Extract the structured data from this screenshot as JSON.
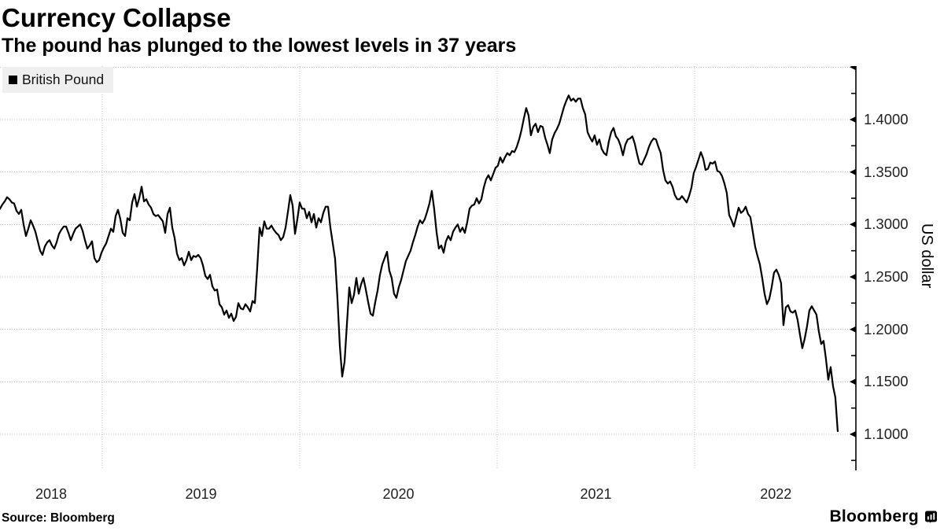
{
  "footer": {
    "source": "Source: Bloomberg",
    "brand": "Bloomberg"
  },
  "chart_data": {
    "type": "line",
    "title": "Currency Collapse",
    "subtitle": "The pound has plunged to the lowest levels in 37 years",
    "ylabel": "US dollar",
    "xlabel": "",
    "grid": "dotted",
    "legend_position": "top-left",
    "x_range": [
      2018.482,
      2022.825
    ],
    "y_range": [
      1.0655,
      1.451
    ],
    "x_gridlines": [
      2019,
      2020,
      2021,
      2022
    ],
    "y_gridlines": [
      1.1,
      1.15,
      1.2,
      1.25,
      1.3,
      1.35,
      1.4,
      1.45
    ],
    "y_minor_ticks": [
      1.075,
      1.125,
      1.175,
      1.225,
      1.275,
      1.325,
      1.375,
      1.425
    ],
    "y_ticks": [
      {
        "value": 1.4,
        "label": "1.4000"
      },
      {
        "value": 1.35,
        "label": "1.3500"
      },
      {
        "value": 1.3,
        "label": "1.3000"
      },
      {
        "value": 1.25,
        "label": "1.2500"
      },
      {
        "value": 1.2,
        "label": "1.2000"
      },
      {
        "value": 1.15,
        "label": "1.1500"
      },
      {
        "value": 1.1,
        "label": "1.1000"
      }
    ],
    "x_ticks": [
      {
        "value": 2018.741,
        "label": "2018"
      },
      {
        "value": 2019.5,
        "label": "2019"
      },
      {
        "value": 2020.5,
        "label": "2020"
      },
      {
        "value": 2021.5,
        "label": "2021"
      },
      {
        "value": 2022.412,
        "label": "2022"
      }
    ],
    "series": [
      {
        "name": "British Pound",
        "color": "#000000",
        "t_start": 2018.482,
        "t_step": 0.011952,
        "values": [
          1.315,
          1.319,
          1.322,
          1.326,
          1.324,
          1.321,
          1.32,
          1.313,
          1.31,
          1.314,
          1.3,
          1.289,
          1.296,
          1.304,
          1.299,
          1.293,
          1.284,
          1.275,
          1.271,
          1.279,
          1.283,
          1.285,
          1.28,
          1.277,
          1.283,
          1.291,
          1.295,
          1.298,
          1.298,
          1.292,
          1.285,
          1.291,
          1.296,
          1.298,
          1.3,
          1.294,
          1.285,
          1.277,
          1.28,
          1.284,
          1.268,
          1.264,
          1.266,
          1.273,
          1.278,
          1.282,
          1.289,
          1.296,
          1.293,
          1.308,
          1.314,
          1.305,
          1.292,
          1.289,
          1.306,
          1.304,
          1.321,
          1.329,
          1.317,
          1.325,
          1.336,
          1.322,
          1.324,
          1.319,
          1.316,
          1.31,
          1.308,
          1.309,
          1.306,
          1.303,
          1.292,
          1.31,
          1.316,
          1.297,
          1.287,
          1.272,
          1.266,
          1.268,
          1.261,
          1.266,
          1.274,
          1.266,
          1.27,
          1.269,
          1.271,
          1.268,
          1.261,
          1.251,
          1.248,
          1.252,
          1.241,
          1.237,
          1.238,
          1.224,
          1.221,
          1.214,
          1.218,
          1.211,
          1.215,
          1.208,
          1.212,
          1.225,
          1.22,
          1.219,
          1.224,
          1.221,
          1.217,
          1.227,
          1.225,
          1.259,
          1.297,
          1.289,
          1.303,
          1.296,
          1.296,
          1.299,
          1.295,
          1.292,
          1.29,
          1.285,
          1.288,
          1.297,
          1.312,
          1.328,
          1.318,
          1.291,
          1.305,
          1.321,
          1.315,
          1.315,
          1.306,
          1.312,
          1.302,
          1.31,
          1.297,
          1.306,
          1.302,
          1.311,
          1.317,
          1.317,
          1.297,
          1.282,
          1.267,
          1.229,
          1.184,
          1.155,
          1.169,
          1.205,
          1.24,
          1.225,
          1.233,
          1.249,
          1.234,
          1.243,
          1.249,
          1.238,
          1.226,
          1.215,
          1.213,
          1.226,
          1.237,
          1.252,
          1.262,
          1.268,
          1.274,
          1.256,
          1.249,
          1.234,
          1.23,
          1.24,
          1.247,
          1.256,
          1.265,
          1.27,
          1.275,
          1.283,
          1.29,
          1.298,
          1.304,
          1.301,
          1.305,
          1.312,
          1.32,
          1.332,
          1.315,
          1.293,
          1.277,
          1.28,
          1.273,
          1.284,
          1.289,
          1.285,
          1.293,
          1.297,
          1.3,
          1.293,
          1.297,
          1.292,
          1.302,
          1.315,
          1.318,
          1.319,
          1.325,
          1.32,
          1.324,
          1.335,
          1.343,
          1.347,
          1.342,
          1.348,
          1.354,
          1.356,
          1.364,
          1.359,
          1.364,
          1.368,
          1.366,
          1.37,
          1.369,
          1.374,
          1.381,
          1.39,
          1.401,
          1.411,
          1.404,
          1.385,
          1.393,
          1.396,
          1.388,
          1.394,
          1.393,
          1.383,
          1.376,
          1.368,
          1.381,
          1.387,
          1.391,
          1.396,
          1.404,
          1.412,
          1.418,
          1.423,
          1.418,
          1.42,
          1.417,
          1.42,
          1.42,
          1.411,
          1.405,
          1.388,
          1.383,
          1.379,
          1.385,
          1.376,
          1.381,
          1.372,
          1.368,
          1.366,
          1.379,
          1.388,
          1.392,
          1.384,
          1.381,
          1.375,
          1.366,
          1.376,
          1.381,
          1.382,
          1.384,
          1.377,
          1.367,
          1.358,
          1.357,
          1.362,
          1.367,
          1.374,
          1.379,
          1.382,
          1.381,
          1.374,
          1.368,
          1.352,
          1.342,
          1.339,
          1.341,
          1.336,
          1.328,
          1.324,
          1.324,
          1.327,
          1.324,
          1.321,
          1.327,
          1.335,
          1.349,
          1.355,
          1.362,
          1.369,
          1.363,
          1.352,
          1.353,
          1.359,
          1.358,
          1.36,
          1.351,
          1.35,
          1.346,
          1.339,
          1.33,
          1.309,
          1.304,
          1.298,
          1.307,
          1.316,
          1.311,
          1.313,
          1.317,
          1.31,
          1.307,
          1.293,
          1.279,
          1.27,
          1.262,
          1.249,
          1.234,
          1.224,
          1.229,
          1.24,
          1.254,
          1.257,
          1.252,
          1.244,
          1.204,
          1.221,
          1.223,
          1.217,
          1.216,
          1.218,
          1.209,
          1.195,
          1.182,
          1.191,
          1.203,
          1.218,
          1.222,
          1.218,
          1.214,
          1.198,
          1.186,
          1.189,
          1.172,
          1.152,
          1.164,
          1.146,
          1.135,
          1.103
        ]
      }
    ]
  }
}
